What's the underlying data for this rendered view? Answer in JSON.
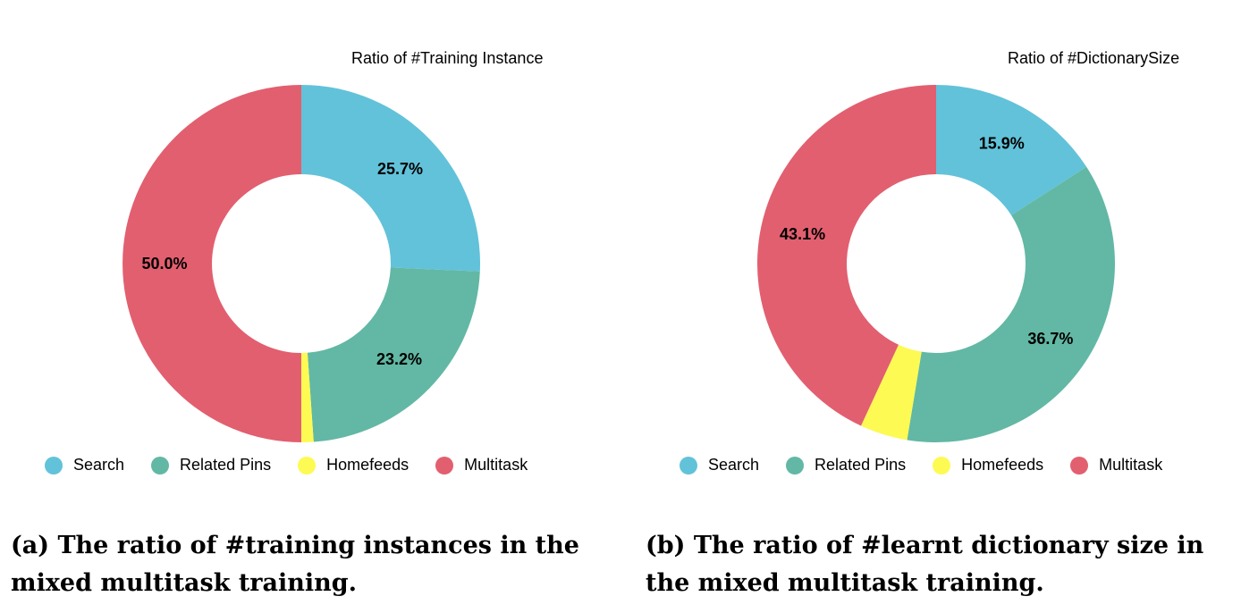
{
  "colors": {
    "Search": "#62c2d9",
    "Related Pins": "#62b8a4",
    "Homefeeds": "#fdfa53",
    "Multitask": "#e25f6f"
  },
  "chart_data": [
    {
      "type": "pie",
      "title": "Ratio of #Training Instance",
      "donut": true,
      "categories": [
        "Search",
        "Related Pins",
        "Homefeeds",
        "Multitask"
      ],
      "values": [
        25.7,
        23.2,
        1.1,
        50.0
      ],
      "value_labels": [
        "25.7%",
        "23.2%",
        "",
        "50.0%"
      ],
      "legend_position": "bottom",
      "caption": "(a) The ratio of #training instances in the mixed multitask training."
    },
    {
      "type": "pie",
      "title": "Ratio of #DictionarySize",
      "donut": true,
      "categories": [
        "Search",
        "Related Pins",
        "Homefeeds",
        "Multitask"
      ],
      "values": [
        15.9,
        36.7,
        4.3,
        43.1
      ],
      "value_labels": [
        "15.9%",
        "36.7%",
        "",
        "43.1%"
      ],
      "legend_position": "bottom",
      "caption": "(b) The ratio of #learnt dictionary size in the mixed multitask training."
    }
  ]
}
